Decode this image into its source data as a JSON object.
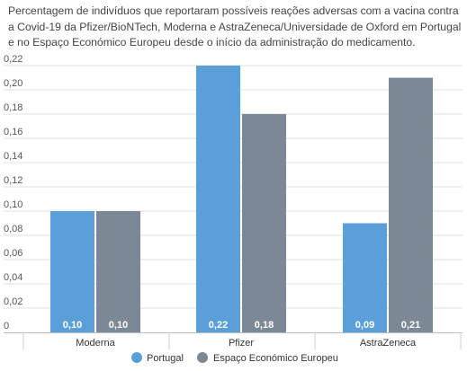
{
  "chart_data": {
    "type": "bar",
    "title": "Percentagem de indivíduos que reportaram possíveis reações adversas com a vacina contra a Covid-19 da Pfizer/BioNTech, Moderna e AstraZeneca/Universidade de Oxford em Portugal e no Espaço Económico Europeu desde o início da administração do medicamento.",
    "categories": [
      "Moderna",
      "Pfizer",
      "AstraZeneca"
    ],
    "series": [
      {
        "name": "Portugal",
        "values": [
          0.1,
          0.22,
          0.09
        ],
        "labels": [
          "0,10",
          "0,22",
          "0,09"
        ],
        "color": "#5a9fd8"
      },
      {
        "name": "Espaço Económico Europeu",
        "values": [
          0.1,
          0.18,
          0.21
        ],
        "labels": [
          "0,10",
          "0,18",
          "0,21"
        ],
        "color": "#7d8896"
      }
    ],
    "ylim": [
      0,
      0.22
    ],
    "yticks": [
      0,
      0.02,
      0.04,
      0.06,
      0.08,
      0.1,
      0.12,
      0.14,
      0.16,
      0.18,
      0.2,
      0.22
    ],
    "ytick_labels": [
      "0",
      "0,02",
      "0,04",
      "0,06",
      "0,08",
      "0,10",
      "0,12",
      "0,14",
      "0,16",
      "0,18",
      "0,20",
      "0,22"
    ],
    "grid": true,
    "legend_position": "bottom"
  }
}
